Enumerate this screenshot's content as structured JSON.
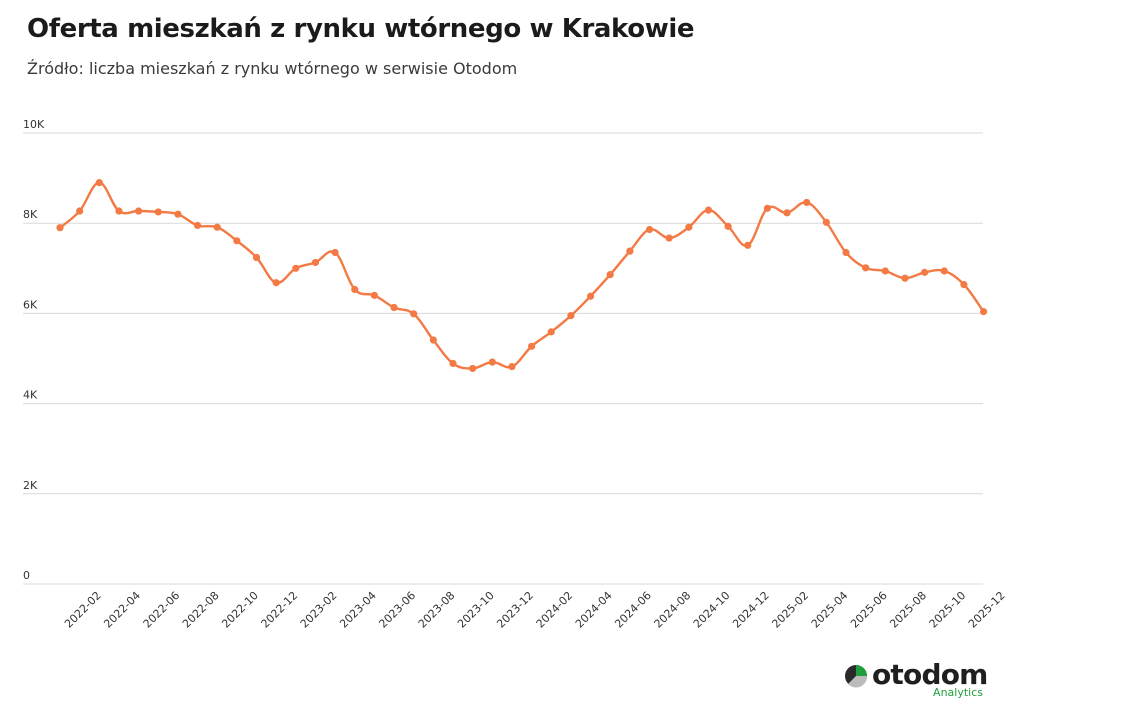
{
  "header": {
    "title": "Oferta mieszkań z rynku wtórnego w Krakowie",
    "subtitle": "Źródło: liczba mieszkań z rynku wtórnego w serwisie Otodom"
  },
  "logo": {
    "name": "otodom",
    "subtitle": "Analytics"
  },
  "colors": {
    "line": "#f47a45",
    "grid": "#d9d9d9",
    "logo_green": "#1f9f3c"
  },
  "chart_data": {
    "type": "line",
    "title": "Oferta mieszkań z rynku wtórnego w Krakowie",
    "subtitle": "Źródło: liczba mieszkań z rynku wtórnego w serwisie Otodom",
    "xlabel": "",
    "ylabel": "",
    "ylim": [
      0,
      10000
    ],
    "y_ticks": [
      0,
      2000,
      4000,
      6000,
      8000,
      10000
    ],
    "y_tick_labels": [
      "0",
      "2K",
      "4K",
      "6K",
      "8K",
      "10K"
    ],
    "grid": "horizontal",
    "x_tick_labels": [
      "2022-02",
      "2022-04",
      "2022-06",
      "2022-08",
      "2022-10",
      "2022-12",
      "2023-02",
      "2023-04",
      "2023-06",
      "2023-08",
      "2023-10",
      "2023-12",
      "2024-02",
      "2024-04",
      "2024-06",
      "2024-08",
      "2024-10",
      "2024-12",
      "2025-02",
      "2025-04",
      "2025-06",
      "2025-08",
      "2025-10",
      "2025-12"
    ],
    "x": [
      "2022-01",
      "2022-02",
      "2022-03",
      "2022-04",
      "2022-05",
      "2022-06",
      "2022-07",
      "2022-08",
      "2022-09",
      "2022-10",
      "2022-11",
      "2022-12",
      "2023-01",
      "2023-02",
      "2023-03",
      "2023-04",
      "2023-05",
      "2023-06",
      "2023-07",
      "2023-08",
      "2023-09",
      "2023-10",
      "2023-11",
      "2023-12",
      "2024-01",
      "2024-02",
      "2024-03",
      "2024-04",
      "2024-05",
      "2024-06",
      "2024-07",
      "2024-08",
      "2024-09",
      "2024-10",
      "2024-11",
      "2024-12",
      "2025-01",
      "2025-02",
      "2025-03",
      "2025-04",
      "2025-05",
      "2025-06",
      "2025-07",
      "2025-08",
      "2025-09",
      "2025-10",
      "2025-11",
      "2025-12"
    ],
    "series": [
      {
        "values": [
          7900,
          8270,
          8900,
          8270,
          8270,
          8250,
          8200,
          7950,
          7910,
          7610,
          7240,
          6680,
          7000,
          7130,
          7350,
          6530,
          6400,
          6130,
          5990,
          5410,
          4890,
          4780,
          4920,
          4820,
          5270,
          5590,
          5950,
          6380,
          6860,
          7380,
          7860,
          7670,
          7910,
          8290,
          7930,
          7510,
          8330,
          8230,
          8460,
          8020,
          7350,
          7010,
          6940,
          6780,
          6910,
          6940,
          6640,
          6040
        ]
      }
    ]
  }
}
